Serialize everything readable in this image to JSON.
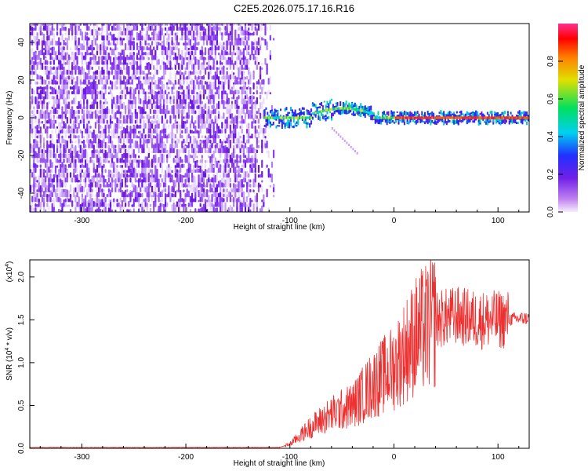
{
  "title": "C2E5.2026.075.17.16.R16",
  "chart_data": [
    {
      "type": "heatmap",
      "name": "spectrogram",
      "xlabel": "Height of straight line (km)",
      "ylabel": "Frequency (Hz)",
      "xlim": [
        -350,
        130
      ],
      "ylim": [
        -50,
        50
      ],
      "xticks": [
        -300,
        -200,
        -100,
        0,
        100
      ],
      "yticks": [
        -40,
        -20,
        0,
        20,
        40
      ],
      "description_regions": {
        "noise_region_x": [
          -350,
          -115
        ],
        "signal_onset_x": -120,
        "signal_center_freq": 0
      },
      "colorbar": {
        "label": "Normalized spectral amplitude",
        "range": [
          0.0,
          1.0
        ],
        "ticks": [
          0.0,
          0.2,
          0.4,
          0.6,
          0.8
        ],
        "tick_labels": [
          "0.0",
          "0.2",
          "0.4",
          "0.6",
          "0.8"
        ],
        "colors": [
          "#f5eefc",
          "#c080f0",
          "#7020e8",
          "#2030ff",
          "#00d0f0",
          "#00e060",
          "#e0e000",
          "#ff8000",
          "#ff0000",
          "#ff3090"
        ]
      }
    },
    {
      "type": "line",
      "name": "snr",
      "xlabel": "Height of straight line (km)",
      "ylabel": "SNR (10",
      "ylabel_sup": "4",
      "ylabel_tail": " * v/v)",
      "exponent_label": "(x10",
      "exponent_sup": "4",
      "exponent_tail": ")",
      "xlim": [
        -350,
        130
      ],
      "ylim": [
        0.0,
        2.2
      ],
      "xticks": [
        -300,
        -200,
        -100,
        0,
        100
      ],
      "yticks": [
        0.0,
        0.5,
        1.0,
        1.5,
        2.0
      ],
      "ytick_labels": [
        "0.0",
        "0.5",
        "1.0",
        "1.5",
        "2.0"
      ],
      "color": "#ee3030",
      "envelope": [
        {
          "x": -350,
          "y": 0.01
        },
        {
          "x": -110,
          "y": 0.01
        },
        {
          "x": -100,
          "y": 0.05
        },
        {
          "x": -80,
          "y": 0.25
        },
        {
          "x": -60,
          "y": 0.4
        },
        {
          "x": -40,
          "y": 0.5
        },
        {
          "x": -20,
          "y": 0.75
        },
        {
          "x": 0,
          "y": 0.95
        },
        {
          "x": 20,
          "y": 1.3
        },
        {
          "x": 40,
          "y": 1.5
        },
        {
          "x": 60,
          "y": 1.55
        },
        {
          "x": 80,
          "y": 1.5
        },
        {
          "x": 100,
          "y": 1.5
        },
        {
          "x": 130,
          "y": 1.52
        }
      ]
    }
  ],
  "tick_labels_x": [
    "-300",
    "-200",
    "-100",
    "0",
    "100"
  ],
  "tick_labels_y1": [
    "40",
    "20",
    "0",
    "-20",
    "-40"
  ]
}
